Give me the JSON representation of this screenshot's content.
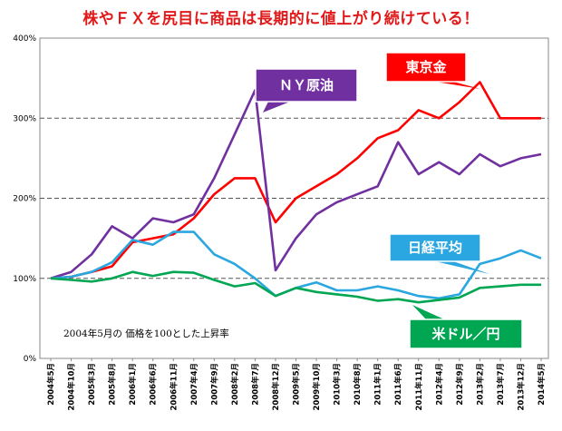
{
  "title": "株やＦＸを尻目に商品は長期的に値上がり続けている！",
  "note": "2004年5月の 価格を100とした上昇率",
  "chart_data": {
    "type": "line",
    "title": "株やＦＸを尻目に商品は長期的に値上がり続けている！",
    "ylim": [
      0,
      400
    ],
    "yticks": [
      "0%",
      "100%",
      "200%",
      "300%",
      "400%"
    ],
    "grid": "horizontal dashed",
    "x": [
      "2004年5月",
      "2004年10月",
      "2005年3月",
      "2005年8月",
      "2006年1月",
      "2006年6月",
      "2006年11月",
      "2007年4月",
      "2007年9月",
      "2008年2月",
      "2008年7月",
      "2008年12月",
      "2009年5月",
      "2009年10月",
      "2010年3月",
      "2010年8月",
      "2011年1月",
      "2011年6月",
      "2011年11月",
      "2012年4月",
      "2012年9月",
      "2013年2月",
      "2013年7月",
      "2013年12月",
      "2014年5月"
    ],
    "series": [
      {
        "name": "東京金",
        "color": "#ff0000",
        "values": [
          100,
          102,
          108,
          115,
          145,
          150,
          155,
          175,
          205,
          225,
          225,
          170,
          200,
          215,
          230,
          250,
          275,
          285,
          310,
          300,
          320,
          345,
          300,
          300,
          300
        ]
      },
      {
        "name": "ＮＹ原油",
        "color": "#7030a0",
        "values": [
          100,
          108,
          130,
          165,
          150,
          175,
          170,
          180,
          225,
          280,
          335,
          110,
          150,
          180,
          195,
          205,
          215,
          270,
          230,
          245,
          230,
          255,
          240,
          250,
          255
        ]
      },
      {
        "name": "日経平均",
        "color": "#2aa7e0",
        "values": [
          100,
          102,
          108,
          120,
          148,
          142,
          158,
          158,
          130,
          118,
          100,
          78,
          88,
          95,
          85,
          85,
          90,
          85,
          78,
          75,
          80,
          118,
          125,
          135,
          125
        ]
      },
      {
        "name": "米ドル／円",
        "color": "#00a651",
        "values": [
          100,
          98,
          96,
          100,
          108,
          103,
          108,
          107,
          98,
          90,
          94,
          78,
          88,
          83,
          80,
          77,
          72,
          74,
          70,
          73,
          76,
          88,
          90,
          92,
          92
        ]
      }
    ],
    "legend": "callout labels on lines"
  }
}
